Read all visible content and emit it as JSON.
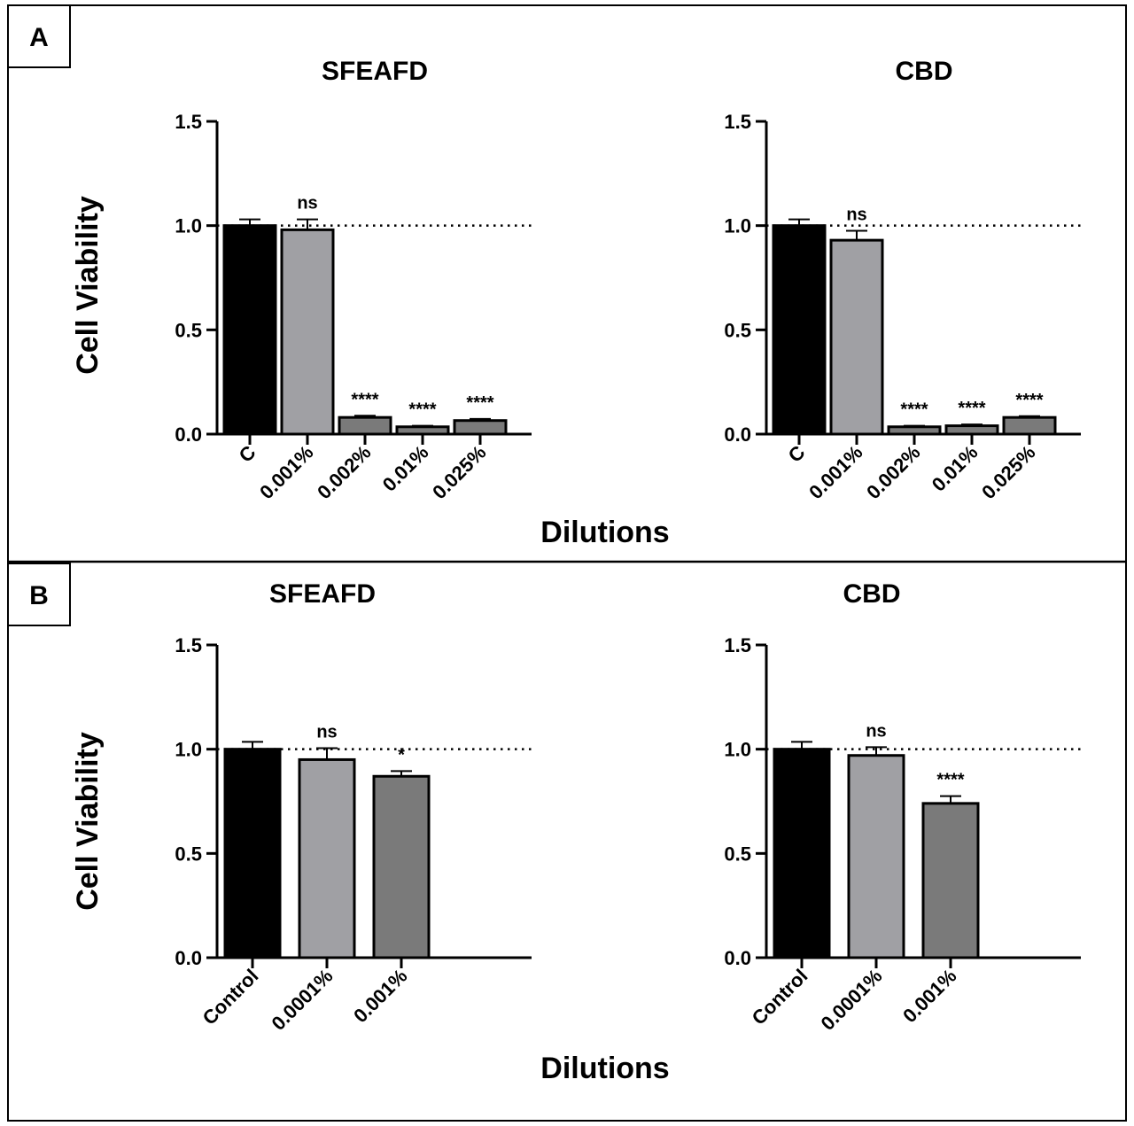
{
  "panels": [
    {
      "letter": "A",
      "ylabel": "Cell Viability",
      "xlabel": "Dilutions",
      "charts": [
        {
          "title": "SFEAFD",
          "categories": [
            "C",
            "0.001%",
            "0.002%",
            "0.01%",
            "0.025%"
          ],
          "values": [
            1.0,
            0.98,
            0.08,
            0.035,
            0.065
          ],
          "errors": [
            0.03,
            0.05,
            0.008,
            0.005,
            0.008
          ],
          "significance": [
            "",
            "ns",
            "****",
            "****",
            "****"
          ]
        },
        {
          "title": "CBD",
          "categories": [
            "C",
            "0.001%",
            "0.002%",
            "0.01%",
            "0.025%"
          ],
          "values": [
            1.0,
            0.93,
            0.035,
            0.04,
            0.08
          ],
          "errors": [
            0.03,
            0.045,
            0.005,
            0.006,
            0.006
          ],
          "significance": [
            "",
            "ns",
            "****",
            "****",
            "****"
          ]
        }
      ]
    },
    {
      "letter": "B",
      "ylabel": "Cell Viability",
      "xlabel": "Dilutions",
      "charts": [
        {
          "title": "SFEAFD",
          "categories": [
            "Control",
            "0.0001%",
            "0.001%"
          ],
          "values": [
            1.0,
            0.95,
            0.87
          ],
          "errors": [
            0.035,
            0.055,
            0.025
          ],
          "significance": [
            "",
            "ns",
            "*"
          ]
        },
        {
          "title": "CBD",
          "categories": [
            "Control",
            "0.0001%",
            "0.001%"
          ],
          "values": [
            1.0,
            0.97,
            0.74
          ],
          "errors": [
            0.035,
            0.04,
            0.035
          ],
          "significance": [
            "",
            "ns",
            "****"
          ]
        }
      ]
    }
  ],
  "chart_data": [
    {
      "type": "bar",
      "title": "SFEAFD",
      "panel": "A",
      "categories": [
        "C",
        "0.001%",
        "0.002%",
        "0.01%",
        "0.025%"
      ],
      "values": [
        1.0,
        0.98,
        0.08,
        0.035,
        0.065
      ],
      "errors": [
        0.03,
        0.05,
        0.008,
        0.005,
        0.008
      ],
      "annotations": [
        "",
        "ns",
        "****",
        "****",
        "****"
      ],
      "xlabel": "Dilutions",
      "ylabel": "Cell Viability",
      "ylim": [
        0,
        1.5
      ],
      "yticks": [
        "0.0",
        "0.5",
        "1.0",
        "1.5"
      ],
      "reference_line": 1.0
    },
    {
      "type": "bar",
      "title": "CBD",
      "panel": "A",
      "categories": [
        "C",
        "0.001%",
        "0.002%",
        "0.01%",
        "0.025%"
      ],
      "values": [
        1.0,
        0.93,
        0.035,
        0.04,
        0.08
      ],
      "errors": [
        0.03,
        0.045,
        0.005,
        0.006,
        0.006
      ],
      "annotations": [
        "",
        "ns",
        "****",
        "****",
        "****"
      ],
      "xlabel": "Dilutions",
      "ylabel": "Cell Viability",
      "ylim": [
        0,
        1.5
      ],
      "yticks": [
        "0.0",
        "0.5",
        "1.0",
        "1.5"
      ],
      "reference_line": 1.0
    },
    {
      "type": "bar",
      "title": "SFEAFD",
      "panel": "B",
      "categories": [
        "Control",
        "0.0001%",
        "0.001%"
      ],
      "values": [
        1.0,
        0.95,
        0.87
      ],
      "errors": [
        0.035,
        0.055,
        0.025
      ],
      "annotations": [
        "",
        "ns",
        "*"
      ],
      "xlabel": "Dilutions",
      "ylabel": "Cell Viability",
      "ylim": [
        0,
        1.5
      ],
      "yticks": [
        "0.0",
        "0.5",
        "1.0",
        "1.5"
      ],
      "reference_line": 1.0
    },
    {
      "type": "bar",
      "title": "CBD",
      "panel": "B",
      "categories": [
        "Control",
        "0.0001%",
        "0.001%"
      ],
      "values": [
        1.0,
        0.97,
        0.74
      ],
      "errors": [
        0.035,
        0.04,
        0.035
      ],
      "annotations": [
        "",
        "ns",
        "****"
      ],
      "xlabel": "Dilutions",
      "ylabel": "Cell Viability",
      "ylim": [
        0,
        1.5
      ],
      "yticks": [
        "0.0",
        "0.5",
        "1.0",
        "1.5"
      ],
      "reference_line": 1.0
    }
  ],
  "yticks": [
    "0.0",
    "0.5",
    "1.0",
    "1.5"
  ],
  "colors": {
    "bar_fills": [
      "#000000",
      "#a0a0a4",
      "#7a7a7a",
      "#7a7a7a",
      "#7a7a7a"
    ],
    "axis": "#000000",
    "frame": "#000000"
  }
}
